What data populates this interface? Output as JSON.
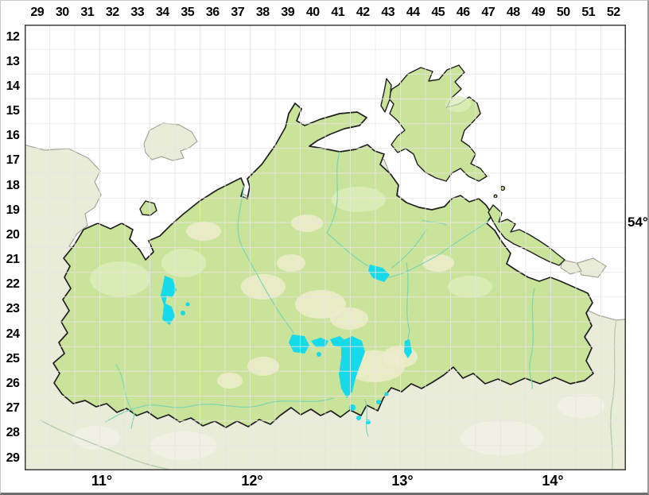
{
  "grid": {
    "column_labels": [
      "29",
      "30",
      "31",
      "32",
      "33",
      "34",
      "35",
      "36",
      "37",
      "38",
      "39",
      "40",
      "41",
      "42",
      "43",
      "44",
      "45",
      "46",
      "47",
      "48",
      "49",
      "50",
      "51",
      "52"
    ],
    "row_labels": [
      "12",
      "13",
      "14",
      "15",
      "16",
      "17",
      "18",
      "19",
      "20",
      "21",
      "22",
      "23",
      "24",
      "25",
      "26",
      "27",
      "28",
      "29"
    ],
    "latitude_label": "54°",
    "longitude_labels": [
      "11°",
      "12°",
      "13°",
      "14°"
    ]
  },
  "map": {
    "colors": {
      "sea": "#ffffff",
      "land_mv": "#c9e49a",
      "land_mv_edge": "#1f1f1f",
      "land_outside": "#e8ecd8",
      "coast_outside": "#a2a89a",
      "lake": "#16d9ea",
      "river": "#7fd4b0",
      "river_outside": "#b7cdb0",
      "grid": "#e9e5e2",
      "map_frame": "#3c3c3c",
      "patch_yellow": "#eeeccd",
      "patch_light": "#dcedba",
      "patch_outside": "#f1f1e6"
    }
  }
}
